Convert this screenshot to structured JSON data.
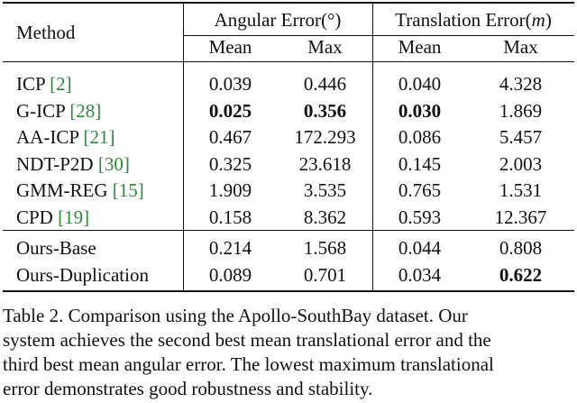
{
  "table": {
    "method_header": "Method",
    "angular_header_prefix": "Angular Error(",
    "angular_header_unit": "°",
    "angular_header_suffix": ")",
    "translation_header_prefix": "Translation Error(",
    "translation_header_unit": "m",
    "translation_header_suffix": ")",
    "sub_headers": [
      "Mean",
      "Max",
      "Mean",
      "Max"
    ],
    "rows_group1": [
      {
        "name": "ICP ",
        "ref": "[2]",
        "values": [
          "0.039",
          "0.446",
          "0.040",
          "4.328"
        ],
        "bold": [
          false,
          false,
          false,
          false
        ]
      },
      {
        "name": "G-ICP ",
        "ref": "[28]",
        "values": [
          "0.025",
          "0.356",
          "0.030",
          "1.869"
        ],
        "bold": [
          true,
          true,
          true,
          false
        ]
      },
      {
        "name": "AA-ICP ",
        "ref": "[21]",
        "values": [
          "0.467",
          "172.293",
          "0.086",
          "5.457"
        ],
        "bold": [
          false,
          false,
          false,
          false
        ]
      },
      {
        "name": "NDT-P2D ",
        "ref": "[30]",
        "values": [
          "0.325",
          "23.618",
          "0.145",
          "2.003"
        ],
        "bold": [
          false,
          false,
          false,
          false
        ]
      },
      {
        "name": "GMM-REG ",
        "ref": "[15]",
        "values": [
          "1.909",
          "3.535",
          "0.765",
          "1.531"
        ],
        "bold": [
          false,
          false,
          false,
          false
        ]
      },
      {
        "name": "CPD ",
        "ref": "[19]",
        "values": [
          "0.158",
          "8.362",
          "0.593",
          "12.367"
        ],
        "bold": [
          false,
          false,
          false,
          false
        ]
      }
    ],
    "rows_group2": [
      {
        "name": "Ours-Base",
        "ref": "",
        "values": [
          "0.214",
          "1.568",
          "0.044",
          "0.808"
        ],
        "bold": [
          false,
          false,
          false,
          false
        ]
      },
      {
        "name": "Ours-Duplication",
        "ref": "",
        "values": [
          "0.089",
          "0.701",
          "0.034",
          "0.622"
        ],
        "bold": [
          false,
          false,
          false,
          true
        ]
      }
    ]
  },
  "caption": {
    "lines": [
      "Table 2.   Comparison using the Apollo-SouthBay dataset.  Our",
      "system achieves the second best mean translational error and the",
      "third best mean angular error.  The lowest maximum translational",
      "error demonstrates good robustness and stability."
    ]
  }
}
